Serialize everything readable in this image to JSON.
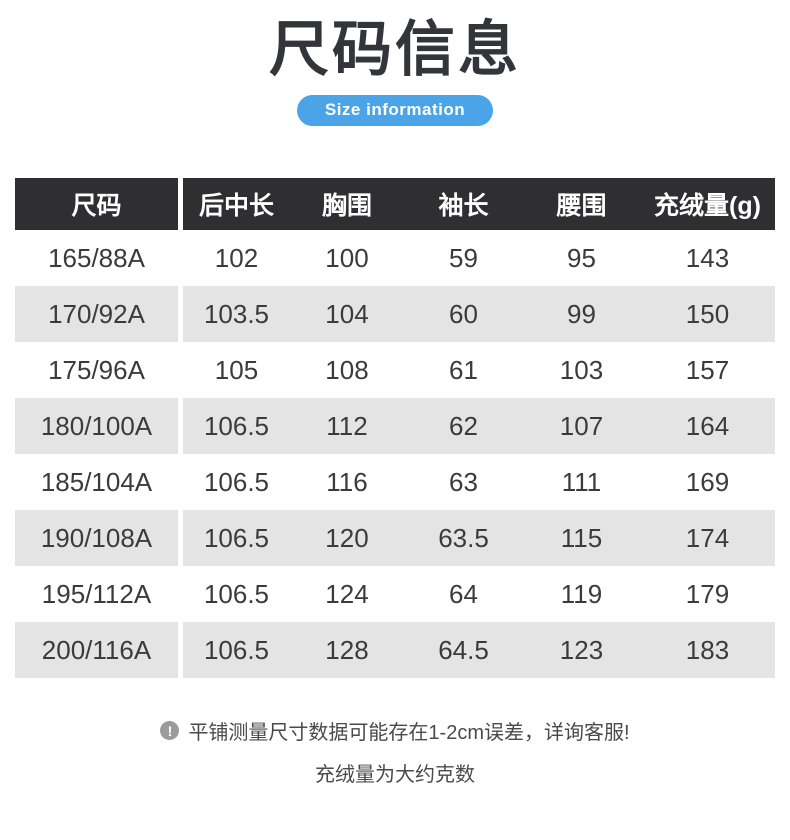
{
  "header": {
    "title": "尺码信息",
    "subtitle": "Size information"
  },
  "table": {
    "columns": [
      "尺码",
      "后中长",
      "胸围",
      "袖长",
      "腰围",
      "充绒量(g)"
    ],
    "rows": [
      [
        "165/88A",
        "102",
        "100",
        "59",
        "95",
        "143"
      ],
      [
        "170/92A",
        "103.5",
        "104",
        "60",
        "99",
        "150"
      ],
      [
        "175/96A",
        "105",
        "108",
        "61",
        "103",
        "157"
      ],
      [
        "180/100A",
        "106.5",
        "112",
        "62",
        "107",
        "164"
      ],
      [
        "185/104A",
        "106.5",
        "116",
        "63",
        "111",
        "169"
      ],
      [
        "190/108A",
        "106.5",
        "120",
        "63.5",
        "115",
        "174"
      ],
      [
        "195/112A",
        "106.5",
        "124",
        "64",
        "119",
        "179"
      ],
      [
        "200/116A",
        "106.5",
        "128",
        "64.5",
        "123",
        "183"
      ]
    ]
  },
  "notes": {
    "icon_glyph": "!",
    "line1": "平铺测量尺寸数据可能存在1-2cm误差，详询客服!",
    "line2": "充绒量为大约克数"
  },
  "colors": {
    "accent_blue": "#4ba4e8",
    "table_header_bg": "#2f2f31",
    "row_alt_bg": "#e4e4e4",
    "title_text": "#34353a",
    "cell_text": "#3b3b3b",
    "note_text": "#4a4a4a",
    "note_icon_bg": "#9b9b9b"
  }
}
